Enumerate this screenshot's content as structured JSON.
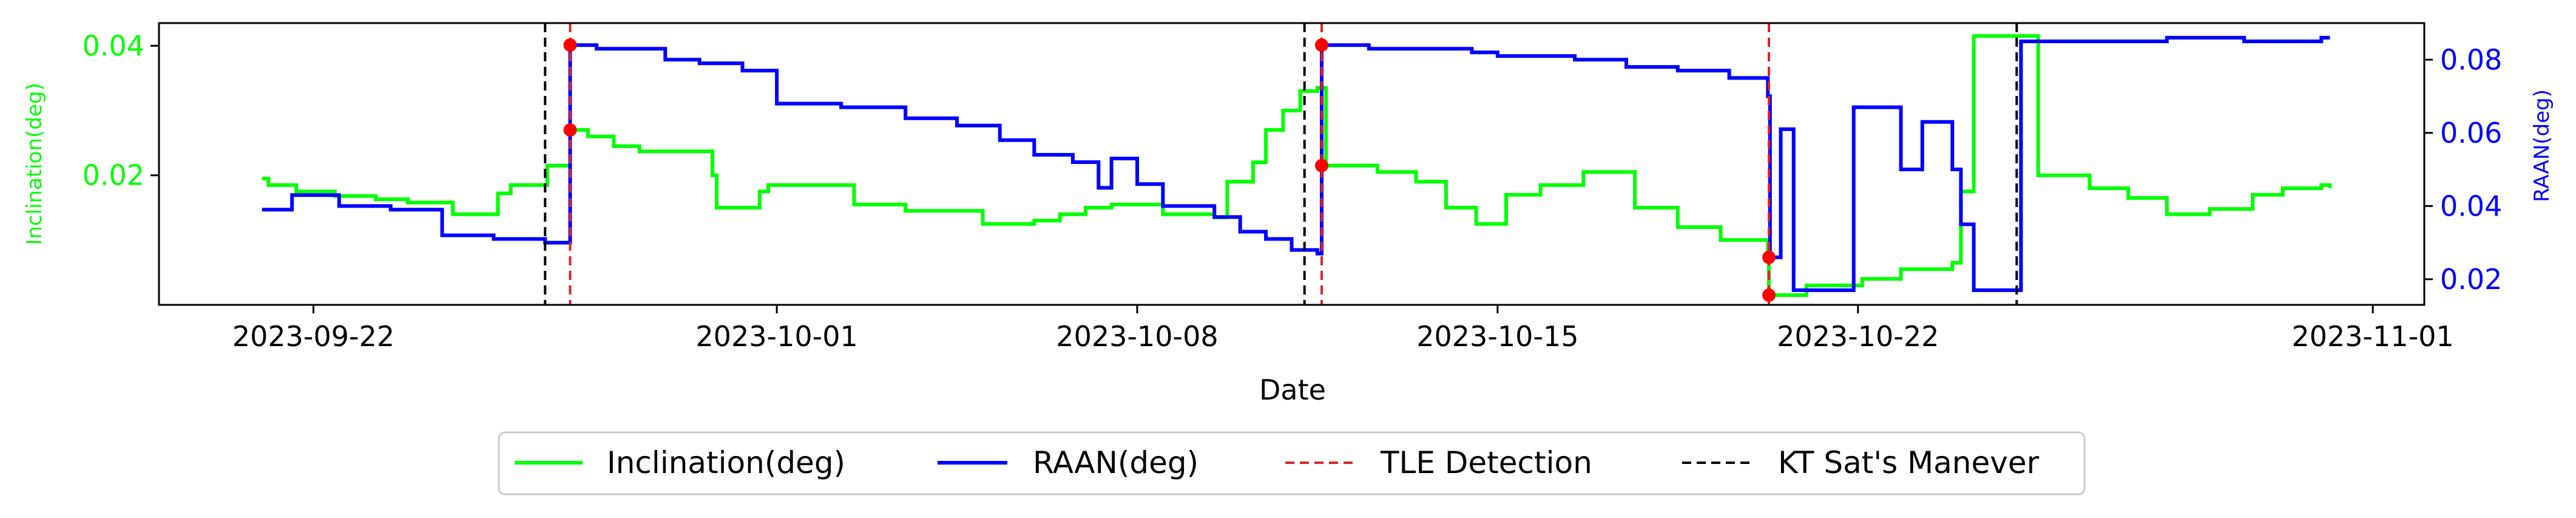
{
  "chart_data": {
    "type": "line",
    "x_axis": {
      "label": "Date",
      "ticks": [
        "2023-09-22",
        "2023-10-01",
        "2023-10-08",
        "2023-10-15",
        "2023-10-22",
        "2023-11-01"
      ],
      "range": [
        "2023-09-19",
        "2023-11-02"
      ]
    },
    "y_left": {
      "label": "Inclination(deg)",
      "color": "#00ff00",
      "ticks": [
        "0.02",
        "0.04"
      ],
      "range": [
        0.0,
        0.0435
      ]
    },
    "y_right": {
      "label": "RAAN(deg)",
      "color": "#0000ff",
      "ticks": [
        "0.02",
        "0.04",
        "0.06",
        "0.08"
      ],
      "range": [
        0.013,
        0.09
      ]
    },
    "series": [
      {
        "name": "Inclination(deg)",
        "axis": "left",
        "color": "#00ff00",
        "points": [
          [
            "2023-09-21 00:00",
            0.0195
          ],
          [
            "2023-09-21 03:00",
            0.0185
          ],
          [
            "2023-09-21 16:00",
            0.0175
          ],
          [
            "2023-09-22 10:00",
            0.0168
          ],
          [
            "2023-09-23 05:00",
            0.0163
          ],
          [
            "2023-09-23 20:00",
            0.0158
          ],
          [
            "2023-09-24 17:00",
            0.014
          ],
          [
            "2023-09-25 14:00",
            0.0172
          ],
          [
            "2023-09-25 20:00",
            0.0185
          ],
          [
            "2023-09-26 13:00",
            0.0215
          ],
          [
            "2023-09-26 23:40",
            0.027
          ],
          [
            "2023-09-27 08:00",
            0.026
          ],
          [
            "2023-09-27 20:00",
            0.0245
          ],
          [
            "2023-09-28 08:00",
            0.0237
          ],
          [
            "2023-09-29 18:00",
            0.02
          ],
          [
            "2023-09-29 20:00",
            0.015
          ],
          [
            "2023-09-30 16:00",
            0.0175
          ],
          [
            "2023-09-30 20:00",
            0.0185
          ],
          [
            "2023-10-02 12:00",
            0.0155
          ],
          [
            "2023-10-03 12:00",
            0.0145
          ],
          [
            "2023-10-05 00:00",
            0.0125
          ],
          [
            "2023-10-06 00:00",
            0.013
          ],
          [
            "2023-10-06 12:00",
            0.014
          ],
          [
            "2023-10-07 00:00",
            0.015
          ],
          [
            "2023-10-07 12:00",
            0.0155
          ],
          [
            "2023-10-08 12:00",
            0.014
          ],
          [
            "2023-10-09 12:00",
            0.0135
          ],
          [
            "2023-10-09 18:00",
            0.019
          ],
          [
            "2023-10-10 06:00",
            0.022
          ],
          [
            "2023-10-10 12:00",
            0.027
          ],
          [
            "2023-10-10 20:00",
            0.03
          ],
          [
            "2023-10-11 04:00",
            0.033
          ],
          [
            "2023-10-11 12:00",
            0.0335
          ],
          [
            "2023-10-11 16:00",
            0.0215
          ],
          [
            "2023-10-12 16:00",
            0.0205
          ],
          [
            "2023-10-13 10:00",
            0.019
          ],
          [
            "2023-10-14 00:00",
            0.015
          ],
          [
            "2023-10-14 14:00",
            0.0125
          ],
          [
            "2023-10-15 04:00",
            0.017
          ],
          [
            "2023-10-15 20:00",
            0.0185
          ],
          [
            "2023-10-16 16:00",
            0.0205
          ],
          [
            "2023-10-17 16:00",
            0.015
          ],
          [
            "2023-10-18 12:00",
            0.012
          ],
          [
            "2023-10-19 08:00",
            0.01
          ],
          [
            "2023-10-20 06:00",
            0.0085
          ],
          [
            "2023-10-20 06:30",
            0.0015
          ],
          [
            "2023-10-21 00:00",
            0.003
          ],
          [
            "2023-10-22 02:00",
            0.004
          ],
          [
            "2023-10-22 20:00",
            0.0055
          ],
          [
            "2023-10-23 20:00",
            0.0065
          ],
          [
            "2023-10-24 00:00",
            0.0175
          ],
          [
            "2023-10-24 06:00",
            0.0415
          ],
          [
            "2023-10-25 00:00",
            0.0415
          ],
          [
            "2023-10-25 12:00",
            0.02
          ],
          [
            "2023-10-26 12:00",
            0.018
          ],
          [
            "2023-10-27 06:00",
            0.0165
          ],
          [
            "2023-10-28 00:00",
            0.014
          ],
          [
            "2023-10-28 20:00",
            0.0148
          ],
          [
            "2023-10-29 16:00",
            0.017
          ],
          [
            "2023-10-30 06:00",
            0.018
          ],
          [
            "2023-10-31 00:00",
            0.0185
          ],
          [
            "2023-10-31 04:00",
            0.018
          ]
        ]
      },
      {
        "name": "RAAN(deg)",
        "axis": "right",
        "color": "#0000ff",
        "points": [
          [
            "2023-09-21 00:00",
            0.039
          ],
          [
            "2023-09-21 14:00",
            0.043
          ],
          [
            "2023-09-22 12:00",
            0.04
          ],
          [
            "2023-09-23 12:00",
            0.039
          ],
          [
            "2023-09-24 12:00",
            0.032
          ],
          [
            "2023-09-25 12:00",
            0.031
          ],
          [
            "2023-09-26 12:00",
            0.03
          ],
          [
            "2023-09-26 23:40",
            0.084
          ],
          [
            "2023-09-27 12:00",
            0.083
          ],
          [
            "2023-09-28 06:00",
            0.083
          ],
          [
            "2023-09-28 20:00",
            0.08
          ],
          [
            "2023-09-29 12:00",
            0.079
          ],
          [
            "2023-09-30 08:00",
            0.077
          ],
          [
            "2023-10-01 00:00",
            0.068
          ],
          [
            "2023-10-02 06:00",
            0.067
          ],
          [
            "2023-10-03 12:00",
            0.064
          ],
          [
            "2023-10-04 12:00",
            0.062
          ],
          [
            "2023-10-05 08:00",
            0.058
          ],
          [
            "2023-10-06 00:00",
            0.054
          ],
          [
            "2023-10-06 18:00",
            0.052
          ],
          [
            "2023-10-07 06:00",
            0.045
          ],
          [
            "2023-10-07 12:00",
            0.053
          ],
          [
            "2023-10-08 00:00",
            0.046
          ],
          [
            "2023-10-08 12:00",
            0.04
          ],
          [
            "2023-10-09 12:00",
            0.037
          ],
          [
            "2023-10-10 00:00",
            0.033
          ],
          [
            "2023-10-10 12:00",
            0.031
          ],
          [
            "2023-10-11 00:00",
            0.028
          ],
          [
            "2023-10-11 12:00",
            0.027
          ],
          [
            "2023-10-11 14:00",
            0.084
          ],
          [
            "2023-10-12 12:00",
            0.083
          ],
          [
            "2023-10-13 00:00",
            0.083
          ],
          [
            "2023-10-14 12:00",
            0.082
          ],
          [
            "2023-10-15 00:00",
            0.081
          ],
          [
            "2023-10-16 12:00",
            0.08
          ],
          [
            "2023-10-17 12:00",
            0.078
          ],
          [
            "2023-10-18 12:00",
            0.077
          ],
          [
            "2023-10-19 12:00",
            0.075
          ],
          [
            "2023-10-20 06:00",
            0.07
          ],
          [
            "2023-10-20 07:00",
            0.026
          ],
          [
            "2023-10-20 12:00",
            0.061
          ],
          [
            "2023-10-20 18:00",
            0.017
          ],
          [
            "2023-10-21 12:00",
            0.017
          ],
          [
            "2023-10-21 22:00",
            0.067
          ],
          [
            "2023-10-22 12:00",
            0.067
          ],
          [
            "2023-10-22 20:00",
            0.05
          ],
          [
            "2023-10-23 06:00",
            0.063
          ],
          [
            "2023-10-23 20:00",
            0.05
          ],
          [
            "2023-10-24 00:00",
            0.035
          ],
          [
            "2023-10-24 06:00",
            0.017
          ],
          [
            "2023-10-25 00:00",
            0.017
          ],
          [
            "2023-10-25 04:00",
            0.085
          ],
          [
            "2023-10-26 12:00",
            0.085
          ],
          [
            "2023-10-28 00:00",
            0.086
          ],
          [
            "2023-10-29 12:00",
            0.085
          ],
          [
            "2023-10-30 12:00",
            0.085
          ],
          [
            "2023-10-31 00:00",
            0.086
          ],
          [
            "2023-10-31 04:00",
            0.086
          ]
        ]
      }
    ],
    "vlines": [
      {
        "name": "KT Sat's Manever",
        "date": "2023-09-26 12:00",
        "color": "#000000",
        "dash": true
      },
      {
        "name": "TLE Detection",
        "date": "2023-09-26 23:40",
        "color": "#d62728",
        "dash": true
      },
      {
        "name": "KT Sat's Manever",
        "date": "2023-10-11 06:00",
        "color": "#000000",
        "dash": true
      },
      {
        "name": "TLE Detection",
        "date": "2023-10-11 14:00",
        "color": "#d62728",
        "dash": true
      },
      {
        "name": "TLE Detection",
        "date": "2023-10-20 06:30",
        "color": "#d62728",
        "dash": true
      },
      {
        "name": "KT Sat's Manever",
        "date": "2023-10-25 02:00",
        "color": "#000000",
        "dash": true
      }
    ],
    "detection_markers": [
      {
        "date": "2023-09-26 23:40",
        "axis": "left",
        "value": 0.027
      },
      {
        "date": "2023-09-26 23:40",
        "axis": "right",
        "value": 0.084
      },
      {
        "date": "2023-10-11 14:00",
        "axis": "left",
        "value": 0.0215
      },
      {
        "date": "2023-10-11 14:00",
        "axis": "right",
        "value": 0.084
      },
      {
        "date": "2023-10-20 06:30",
        "axis": "left",
        "value": 0.0015
      },
      {
        "date": "2023-10-20 06:30",
        "axis": "right",
        "value": 0.026
      }
    ],
    "legend": {
      "placement": "bottom",
      "entries": [
        {
          "label": "Inclination(deg)",
          "color": "#00ff00",
          "style": "solid"
        },
        {
          "label": "RAAN(deg)",
          "color": "#0000ff",
          "style": "solid"
        },
        {
          "label": "TLE Detection",
          "color": "#d62728",
          "style": "dashed"
        },
        {
          "label": "KT Sat's Manever",
          "color": "#000000",
          "style": "dashed"
        }
      ]
    },
    "grid": false
  }
}
